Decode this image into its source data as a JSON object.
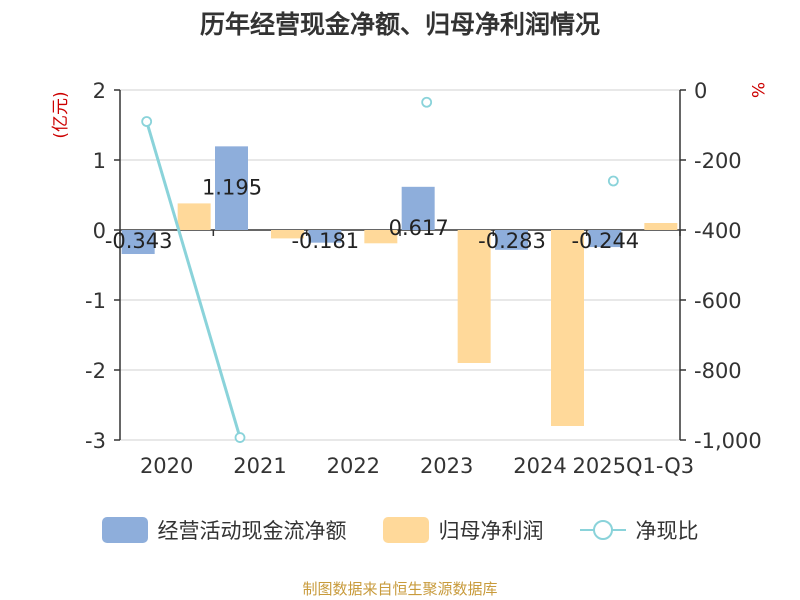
{
  "chart_data": {
    "type": "bar",
    "title": "历年经营现金净额、归母净利润情况",
    "categories": [
      "2020",
      "2021",
      "2022",
      "2023",
      "2024",
      "2025Q1-Q3"
    ],
    "y_left": {
      "label": "(亿元)",
      "ylim": [
        -3,
        2
      ],
      "ticks": [
        "2",
        "1",
        "0",
        "-1",
        "-2",
        "-3"
      ],
      "tick_values": [
        2,
        1,
        0,
        -1,
        -2,
        -3
      ]
    },
    "y_right": {
      "label": "%",
      "ylim": [
        -1000,
        0
      ],
      "ticks": [
        "0",
        "-200",
        "-400",
        "-600",
        "-800",
        "-1,000"
      ],
      "tick_values": [
        0,
        -200,
        -400,
        -600,
        -800,
        -1000
      ]
    },
    "series": [
      {
        "name": "经营活动现金流净额",
        "type": "bar",
        "axis": "left",
        "color": "#8eaedb",
        "values": [
          -0.343,
          1.195,
          -0.181,
          0.617,
          -0.283,
          -0.244
        ],
        "labels": [
          "-0.343",
          "1.195",
          "-0.181",
          "0.617",
          "-0.283",
          "-0.244"
        ]
      },
      {
        "name": "归母净利润",
        "type": "bar",
        "axis": "left",
        "color": "#ffd99a",
        "values": [
          0.38,
          -0.12,
          -0.19,
          -1.9,
          -2.8,
          0.1
        ]
      },
      {
        "name": "净现比",
        "type": "line",
        "axis": "right",
        "color": "#8ad3da",
        "values": [
          -90,
          -993,
          null,
          -35,
          null,
          -260
        ]
      }
    ],
    "grid": true,
    "legend_position": "bottom"
  },
  "source_text": "制图数据来自恒生聚源数据库"
}
